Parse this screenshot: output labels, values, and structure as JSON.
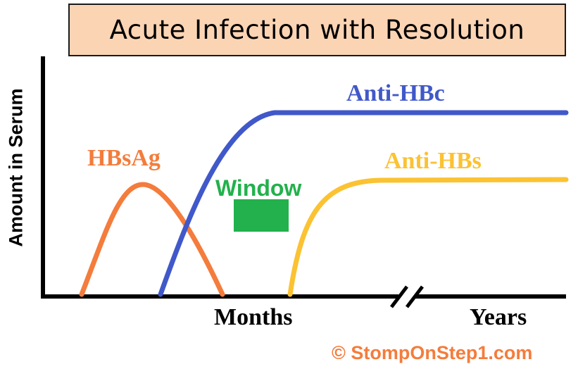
{
  "title": "Acute Infection with Resolution",
  "axes": {
    "ylabel": "Amount in Serum",
    "xlabel_months": "Months",
    "xlabel_years": "Years"
  },
  "labels": {
    "hbsag": "HBsAg",
    "anti_hbc": "Anti-HBc",
    "anti_hbs": "Anti-HBs",
    "window": "Window"
  },
  "copyright": "© StompOnStep1.com",
  "colors": {
    "title_background": "#fbd4b4",
    "hbsag": "#f47c3c",
    "anti_hbc": "#4058c9",
    "anti_hbs": "#fbc232",
    "window": "#22b14c",
    "copyright": "#f47c3c",
    "axis": "#000000"
  },
  "icons": [
    "axis-break-icon"
  ]
}
